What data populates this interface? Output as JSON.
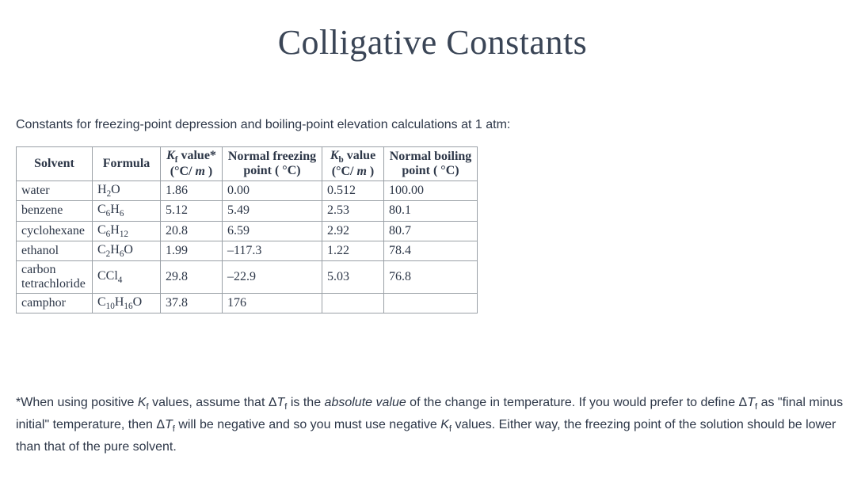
{
  "title": "Colligative Constants",
  "intro": "Constants for freezing-point depression and boiling-point elevation calculations at 1 atm:",
  "table": {
    "headers": {
      "solvent": "Solvent",
      "formula": "Formula",
      "kf_label_prefix": "K",
      "kf_label_sub": "f",
      "kf_label_suffix": " value*",
      "kf_unit_open": "(°C/ ",
      "kf_unit_m": "m",
      "kf_unit_close": " )",
      "nfp_line1": "Normal freezing",
      "nfp_line2": "point ( °C)",
      "kb_label_prefix": "K",
      "kb_label_sub": "b",
      "kb_label_suffix": " value",
      "kb_unit_open": "(°C/ ",
      "kb_unit_m": "m",
      "kb_unit_close": " )",
      "nbp_line1": "Normal boiling",
      "nbp_line2": "point ( °C)"
    },
    "rows": [
      {
        "solvent": "water",
        "formula_parts": [
          {
            "t": "H"
          },
          {
            "s": "2"
          },
          {
            "t": "O"
          }
        ],
        "kf": "1.86",
        "nfp": "0.00",
        "kb": "0.512",
        "nbp": "100.00"
      },
      {
        "solvent": "benzene",
        "formula_parts": [
          {
            "t": "C"
          },
          {
            "s": "6"
          },
          {
            "t": "H"
          },
          {
            "s": "6"
          }
        ],
        "kf": "5.12",
        "nfp": "5.49",
        "kb": "2.53",
        "nbp": "80.1"
      },
      {
        "solvent": "cyclohexane",
        "formula_parts": [
          {
            "t": "C"
          },
          {
            "s": "6"
          },
          {
            "t": "H"
          },
          {
            "s": "12"
          }
        ],
        "kf": "20.8",
        "nfp": "6.59",
        "kb": "2.92",
        "nbp": "80.7"
      },
      {
        "solvent": "ethanol",
        "formula_parts": [
          {
            "t": "C"
          },
          {
            "s": "2"
          },
          {
            "t": "H"
          },
          {
            "s": "6"
          },
          {
            "t": "O"
          }
        ],
        "kf": "1.99",
        "nfp": "–117.3",
        "kb": "1.22",
        "nbp": "78.4"
      },
      {
        "solvent": "carbon tetrachloride",
        "formula_parts": [
          {
            "t": "CCl"
          },
          {
            "s": "4"
          }
        ],
        "kf": "29.8",
        "nfp": "–22.9",
        "kb": "5.03",
        "nbp": "76.8"
      },
      {
        "solvent": "camphor",
        "formula_parts": [
          {
            "t": "C"
          },
          {
            "s": "10"
          },
          {
            "t": "H"
          },
          {
            "s": "16"
          },
          {
            "t": "O"
          }
        ],
        "kf": "37.8",
        "nfp": "176",
        "kb": "",
        "nbp": ""
      }
    ],
    "col_widths": [
      "96px",
      "86px",
      "78px",
      "126px",
      "78px",
      "118px"
    ]
  },
  "footnote": {
    "prefix": "*When using positive ",
    "kf_i": "K",
    "kf_sub": "f",
    "seg1": " values, assume that Δ",
    "t1_i": "T",
    "t1_sub": "f",
    "seg2": " is the ",
    "abs": "absolute value",
    "seg3": " of the change in temperature. If you would prefer to define Δ",
    "t2_i": "T",
    "t2_sub": "f",
    "seg4": " as \"final minus initial\" temperature, then Δ",
    "t3_i": "T",
    "t3_sub": "f",
    "seg5": " will be negative and so you must use negative ",
    "kf2_i": "K",
    "kf2_sub": "f",
    "seg6": " values. Either way, the freezing point of the solution should be lower than that of the pure solvent."
  },
  "colors": {
    "heading": "#3a4556",
    "text": "#2d3748",
    "border": "#9aa0a6",
    "background": "#ffffff"
  }
}
